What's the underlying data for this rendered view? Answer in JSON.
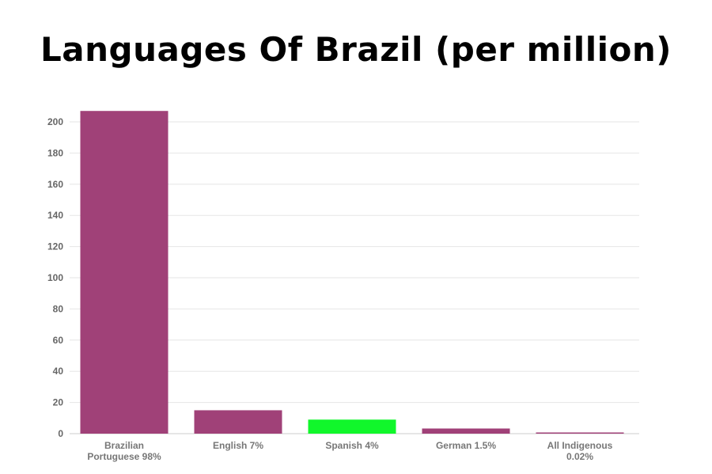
{
  "chart_data": {
    "type": "bar",
    "title": "Languages Of Brazil (per million)",
    "categories": [
      [
        "Brazilian",
        "Portuguese 98%"
      ],
      [
        "English 7%"
      ],
      [
        "Spanish 4%"
      ],
      [
        "German 1.5%"
      ],
      [
        "All Indigenous",
        "0.02%"
      ]
    ],
    "values": [
      207,
      15,
      9,
      3.3,
      0.6
    ],
    "bar_colors": [
      "#a04178",
      "#a04178",
      "#11f72b",
      "#a04178",
      "#a04178"
    ],
    "yticks": [
      0,
      20,
      40,
      60,
      80,
      100,
      120,
      140,
      160,
      180,
      200
    ],
    "ylim": [
      0,
      210
    ],
    "grid": true,
    "xlabel": "",
    "ylabel": ""
  }
}
